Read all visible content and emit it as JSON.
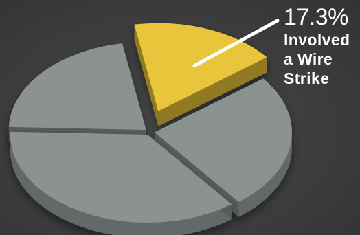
{
  "chart_data": {
    "type": "pie",
    "title": "",
    "slices": [
      {
        "label": "Involved a Wire Strike",
        "value": 17.3,
        "color": "#e8c53a",
        "exploded": true
      },
      {
        "label": "",
        "value": 25.0,
        "color": "#8b9291",
        "exploded": false
      },
      {
        "label": "",
        "value": 36.0,
        "color": "#8b9291",
        "exploded": false
      },
      {
        "label": "",
        "value": 21.7,
        "color": "#8b9291",
        "exploded": false
      }
    ],
    "highlight_color": "#e8c53a",
    "other_color": "#8b9291"
  },
  "callout": {
    "value": "17.3%",
    "label": "Involved a Wire Strike"
  }
}
